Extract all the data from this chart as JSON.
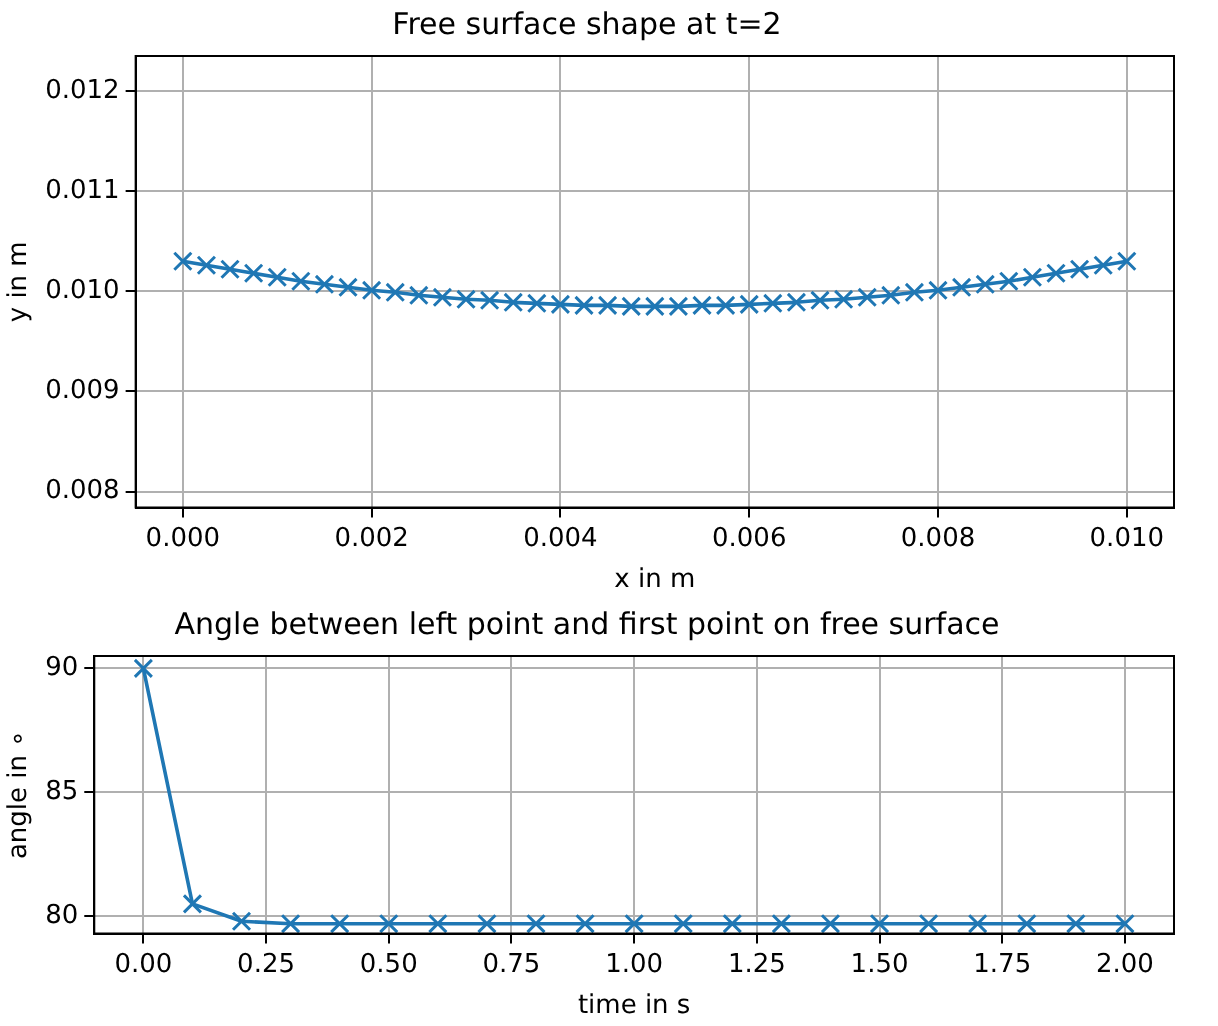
{
  "chart_data": [
    {
      "type": "line",
      "title": "Free surface shape at t=2",
      "xlabel": "x in m",
      "ylabel": "y in m",
      "x": [
        0,
        0.00025,
        0.0005,
        0.00075,
        0.001,
        0.00125,
        0.0015,
        0.00175,
        0.002,
        0.00225,
        0.0025,
        0.00275,
        0.003,
        0.00325,
        0.0035,
        0.00375,
        0.004,
        0.00425,
        0.0045,
        0.00475,
        0.005,
        0.00525,
        0.0055,
        0.00575,
        0.006,
        0.00625,
        0.0065,
        0.00675,
        0.007,
        0.00725,
        0.0075,
        0.00775,
        0.008,
        0.00825,
        0.0085,
        0.00875,
        0.009,
        0.00925,
        0.0095,
        0.00975,
        0.01
      ],
      "series": [
        {
          "color": "#1f77b4",
          "values": [
            0.0103,
            0.01026,
            0.01022,
            0.01018,
            0.01014,
            0.0101,
            0.01007,
            0.01004,
            0.01001,
            0.00999,
            0.00996,
            0.00994,
            0.00992,
            0.00991,
            0.00989,
            0.00988,
            0.00987,
            0.00986,
            0.00986,
            0.00985,
            0.00985,
            0.00985,
            0.00986,
            0.00986,
            0.00987,
            0.00988,
            0.00989,
            0.00991,
            0.00992,
            0.00994,
            0.00996,
            0.00999,
            0.01001,
            0.01004,
            0.01007,
            0.0101,
            0.01014,
            0.01018,
            0.01022,
            0.01026,
            0.0103
          ]
        }
      ],
      "xlim": [
        -0.0005,
        0.0105
      ],
      "ylim": [
        0.00784,
        0.01235
      ],
      "xticks": [
        {
          "value": 0,
          "label": "0.000"
        },
        {
          "value": 0.002,
          "label": "0.002"
        },
        {
          "value": 0.004,
          "label": "0.004"
        },
        {
          "value": 0.006,
          "label": "0.006"
        },
        {
          "value": 0.008,
          "label": "0.008"
        },
        {
          "value": 0.01,
          "label": "0.010"
        }
      ],
      "yticks": [
        {
          "value": 0.008,
          "label": "0.008"
        },
        {
          "value": 0.009,
          "label": "0.009"
        },
        {
          "value": 0.01,
          "label": "0.010"
        },
        {
          "value": 0.011,
          "label": "0.011"
        },
        {
          "value": 0.012,
          "label": "0.012"
        }
      ],
      "grid": true,
      "legend": false,
      "marker": "cross",
      "line_style": "solid"
    },
    {
      "type": "line",
      "title": "Angle between left point and first point on free surface",
      "xlabel": "time in s",
      "ylabel": "angle in ∘",
      "x": [
        0,
        0.1,
        0.2,
        0.3,
        0.4,
        0.5,
        0.6,
        0.7,
        0.8,
        0.9,
        1.0,
        1.1,
        1.2,
        1.3,
        1.4,
        1.5,
        1.6,
        1.7,
        1.8,
        1.9,
        2.0
      ],
      "series": [
        {
          "color": "#1f77b4",
          "values": [
            90,
            80.5,
            79.8,
            79.7,
            79.7,
            79.7,
            79.7,
            79.7,
            79.7,
            79.7,
            79.7,
            79.7,
            79.7,
            79.7,
            79.7,
            79.7,
            79.7,
            79.7,
            79.7,
            79.7,
            79.7
          ]
        }
      ],
      "xlim": [
        -0.1,
        2.1
      ],
      "ylim": [
        79.3,
        90.5
      ],
      "xticks": [
        {
          "value": 0,
          "label": "0.00"
        },
        {
          "value": 0.25,
          "label": "0.25"
        },
        {
          "value": 0.5,
          "label": "0.50"
        },
        {
          "value": 0.75,
          "label": "0.75"
        },
        {
          "value": 1,
          "label": "1.00"
        },
        {
          "value": 1.25,
          "label": "1.25"
        },
        {
          "value": 1.5,
          "label": "1.50"
        },
        {
          "value": 1.75,
          "label": "1.75"
        },
        {
          "value": 2,
          "label": "2.00"
        }
      ],
      "yticks": [
        80,
        85,
        90
      ],
      "grid": true,
      "legend": false,
      "marker": "cross",
      "line_style": "solid"
    }
  ]
}
